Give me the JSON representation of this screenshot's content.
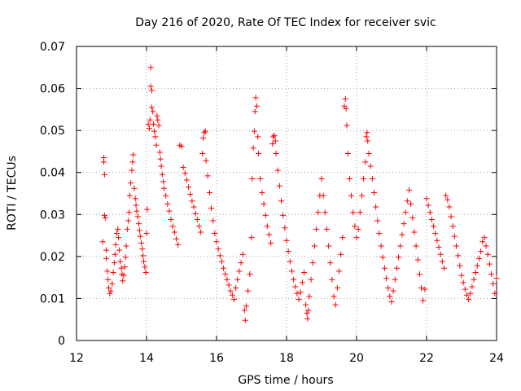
{
  "chart_data": {
    "type": "scatter",
    "title": "Day 216 of 2020, Rate Of TEC Index for receiver svic",
    "xlabel": "GPS time / hours",
    "ylabel": "ROTI / TECUs",
    "xlim": [
      12,
      24
    ],
    "ylim": [
      0,
      0.07
    ],
    "xticks": [
      "12",
      "14",
      "16",
      "18",
      "20",
      "22",
      "24"
    ],
    "yticks": [
      "0",
      "0.01",
      "0.02",
      "0.03",
      "0.04",
      "0.05",
      "0.06",
      "0.07"
    ],
    "grid": true,
    "marker": "plus",
    "color": "#ff0000",
    "series": [
      {
        "points": [
          [
            12.78,
            0.0435
          ],
          [
            12.78,
            0.0425
          ],
          [
            12.8,
            0.0395
          ],
          [
            12.8,
            0.0298
          ],
          [
            12.82,
            0.0292
          ],
          [
            12.75,
            0.0235
          ],
          [
            12.85,
            0.0215
          ],
          [
            12.85,
            0.0195
          ],
          [
            12.88,
            0.0165
          ],
          [
            12.9,
            0.0145
          ],
          [
            12.92,
            0.0125
          ],
          [
            12.95,
            0.0112
          ],
          [
            12.98,
            0.0118
          ],
          [
            13.02,
            0.0135
          ],
          [
            13.05,
            0.0162
          ],
          [
            13.08,
            0.0185
          ],
          [
            13.1,
            0.0205
          ],
          [
            13.12,
            0.0228
          ],
          [
            13.15,
            0.0255
          ],
          [
            13.18,
            0.0265
          ],
          [
            13.2,
            0.0245
          ],
          [
            13.22,
            0.0215
          ],
          [
            13.25,
            0.0188
          ],
          [
            13.28,
            0.0172
          ],
          [
            13.3,
            0.0158
          ],
          [
            13.32,
            0.0142
          ],
          [
            13.35,
            0.0155
          ],
          [
            13.38,
            0.0175
          ],
          [
            13.4,
            0.0198
          ],
          [
            13.42,
            0.0225
          ],
          [
            13.45,
            0.0265
          ],
          [
            13.48,
            0.0285
          ],
          [
            13.5,
            0.0305
          ],
          [
            13.52,
            0.0345
          ],
          [
            13.55,
            0.0375
          ],
          [
            13.58,
            0.0405
          ],
          [
            13.6,
            0.0425
          ],
          [
            13.62,
            0.0442
          ],
          [
            13.65,
            0.0362
          ],
          [
            13.68,
            0.0338
          ],
          [
            13.7,
            0.0322
          ],
          [
            13.72,
            0.0308
          ],
          [
            13.75,
            0.0295
          ],
          [
            13.78,
            0.0278
          ],
          [
            13.8,
            0.0262
          ],
          [
            13.82,
            0.0248
          ],
          [
            13.85,
            0.0232
          ],
          [
            13.88,
            0.0218
          ],
          [
            13.9,
            0.0202
          ],
          [
            13.92,
            0.0188
          ],
          [
            13.95,
            0.0175
          ],
          [
            13.98,
            0.0162
          ],
          [
            14.0,
            0.0255
          ],
          [
            14.02,
            0.0312
          ],
          [
            14.05,
            0.0515
          ],
          [
            14.08,
            0.0505
          ],
          [
            14.1,
            0.0525
          ],
          [
            14.12,
            0.065
          ],
          [
            14.12,
            0.0605
          ],
          [
            14.15,
            0.0595
          ],
          [
            14.15,
            0.0555
          ],
          [
            14.18,
            0.0545
          ],
          [
            14.2,
            0.0515
          ],
          [
            14.22,
            0.0498
          ],
          [
            14.25,
            0.0485
          ],
          [
            14.28,
            0.0465
          ],
          [
            14.3,
            0.0535
          ],
          [
            14.32,
            0.0525
          ],
          [
            14.35,
            0.0512
          ],
          [
            14.38,
            0.0448
          ],
          [
            14.4,
            0.0432
          ],
          [
            14.42,
            0.0415
          ],
          [
            14.45,
            0.0395
          ],
          [
            14.48,
            0.0378
          ],
          [
            14.5,
            0.0362
          ],
          [
            14.55,
            0.0345
          ],
          [
            14.6,
            0.0325
          ],
          [
            14.65,
            0.0308
          ],
          [
            14.7,
            0.0288
          ],
          [
            14.75,
            0.0272
          ],
          [
            14.8,
            0.0258
          ],
          [
            14.85,
            0.0242
          ],
          [
            14.9,
            0.0228
          ],
          [
            14.95,
            0.0465
          ],
          [
            15.0,
            0.0462
          ],
          [
            15.05,
            0.0412
          ],
          [
            15.1,
            0.0398
          ],
          [
            15.15,
            0.0382
          ],
          [
            15.2,
            0.0365
          ],
          [
            15.25,
            0.0348
          ],
          [
            15.3,
            0.0332
          ],
          [
            15.35,
            0.0318
          ],
          [
            15.4,
            0.0302
          ],
          [
            15.45,
            0.0288
          ],
          [
            15.5,
            0.0272
          ],
          [
            15.55,
            0.0258
          ],
          [
            15.6,
            0.0445
          ],
          [
            15.62,
            0.0482
          ],
          [
            15.65,
            0.0495
          ],
          [
            15.68,
            0.0498
          ],
          [
            15.7,
            0.0428
          ],
          [
            15.75,
            0.0392
          ],
          [
            15.8,
            0.0352
          ],
          [
            15.85,
            0.0315
          ],
          [
            15.9,
            0.0285
          ],
          [
            15.95,
            0.0255
          ],
          [
            16.0,
            0.0235
          ],
          [
            16.05,
            0.0218
          ],
          [
            16.1,
            0.0202
          ],
          [
            16.15,
            0.0188
          ],
          [
            16.2,
            0.0172
          ],
          [
            16.25,
            0.0158
          ],
          [
            16.3,
            0.0145
          ],
          [
            16.35,
            0.0132
          ],
          [
            16.4,
            0.0118
          ],
          [
            16.45,
            0.0108
          ],
          [
            16.5,
            0.0098
          ],
          [
            16.55,
            0.0125
          ],
          [
            16.6,
            0.0145
          ],
          [
            16.65,
            0.0165
          ],
          [
            16.7,
            0.0185
          ],
          [
            16.75,
            0.0205
          ],
          [
            16.8,
            0.0072
          ],
          [
            16.82,
            0.0048
          ],
          [
            16.85,
            0.0082
          ],
          [
            16.9,
            0.0118
          ],
          [
            16.95,
            0.0158
          ],
          [
            17.0,
            0.0245
          ],
          [
            17.02,
            0.0385
          ],
          [
            17.05,
            0.0458
          ],
          [
            17.08,
            0.0498
          ],
          [
            17.1,
            0.0545
          ],
          [
            17.12,
            0.0578
          ],
          [
            17.15,
            0.0558
          ],
          [
            17.18,
            0.0485
          ],
          [
            17.2,
            0.0445
          ],
          [
            17.25,
            0.0385
          ],
          [
            17.3,
            0.0352
          ],
          [
            17.35,
            0.0325
          ],
          [
            17.4,
            0.0298
          ],
          [
            17.45,
            0.0272
          ],
          [
            17.5,
            0.0252
          ],
          [
            17.55,
            0.0232
          ],
          [
            17.6,
            0.0468
          ],
          [
            17.62,
            0.0485
          ],
          [
            17.65,
            0.0488
          ],
          [
            17.68,
            0.0475
          ],
          [
            17.7,
            0.0445
          ],
          [
            17.75,
            0.0405
          ],
          [
            17.8,
            0.0368
          ],
          [
            17.85,
            0.0332
          ],
          [
            17.9,
            0.0298
          ],
          [
            17.95,
            0.0268
          ],
          [
            18.0,
            0.0238
          ],
          [
            18.05,
            0.0212
          ],
          [
            18.1,
            0.0188
          ],
          [
            18.15,
            0.0165
          ],
          [
            18.2,
            0.0145
          ],
          [
            18.25,
            0.0128
          ],
          [
            18.3,
            0.0112
          ],
          [
            18.35,
            0.0098
          ],
          [
            18.4,
            0.0115
          ],
          [
            18.45,
            0.0138
          ],
          [
            18.5,
            0.0162
          ],
          [
            18.55,
            0.0085
          ],
          [
            18.58,
            0.0065
          ],
          [
            18.6,
            0.0052
          ],
          [
            18.62,
            0.0072
          ],
          [
            18.65,
            0.0105
          ],
          [
            18.7,
            0.0145
          ],
          [
            18.75,
            0.0185
          ],
          [
            18.8,
            0.0225
          ],
          [
            18.85,
            0.0265
          ],
          [
            18.9,
            0.0305
          ],
          [
            18.95,
            0.0345
          ],
          [
            19.0,
            0.0385
          ],
          [
            19.05,
            0.0345
          ],
          [
            19.1,
            0.0305
          ],
          [
            19.15,
            0.0265
          ],
          [
            19.2,
            0.0225
          ],
          [
            19.25,
            0.0185
          ],
          [
            19.3,
            0.0145
          ],
          [
            19.35,
            0.0105
          ],
          [
            19.4,
            0.0085
          ],
          [
            19.45,
            0.0125
          ],
          [
            19.5,
            0.0165
          ],
          [
            19.55,
            0.0205
          ],
          [
            19.6,
            0.0245
          ],
          [
            19.65,
            0.0558
          ],
          [
            19.68,
            0.0575
          ],
          [
            19.7,
            0.0552
          ],
          [
            19.72,
            0.0512
          ],
          [
            19.75,
            0.0445
          ],
          [
            19.8,
            0.0385
          ],
          [
            19.85,
            0.0345
          ],
          [
            19.9,
            0.0305
          ],
          [
            19.95,
            0.0272
          ],
          [
            20.0,
            0.0245
          ],
          [
            20.05,
            0.0265
          ],
          [
            20.1,
            0.0305
          ],
          [
            20.15,
            0.0345
          ],
          [
            20.2,
            0.0385
          ],
          [
            20.25,
            0.0425
          ],
          [
            20.28,
            0.0485
          ],
          [
            20.3,
            0.0495
          ],
          [
            20.32,
            0.0475
          ],
          [
            20.35,
            0.0445
          ],
          [
            20.4,
            0.0415
          ],
          [
            20.45,
            0.0385
          ],
          [
            20.5,
            0.0352
          ],
          [
            20.55,
            0.0318
          ],
          [
            20.6,
            0.0285
          ],
          [
            20.65,
            0.0255
          ],
          [
            20.7,
            0.0225
          ],
          [
            20.75,
            0.0198
          ],
          [
            20.8,
            0.0172
          ],
          [
            20.85,
            0.0148
          ],
          [
            20.9,
            0.0125
          ],
          [
            20.95,
            0.0105
          ],
          [
            21.0,
            0.0092
          ],
          [
            21.05,
            0.0118
          ],
          [
            21.1,
            0.0145
          ],
          [
            21.15,
            0.0172
          ],
          [
            21.2,
            0.0198
          ],
          [
            21.25,
            0.0225
          ],
          [
            21.3,
            0.0252
          ],
          [
            21.35,
            0.0278
          ],
          [
            21.4,
            0.0305
          ],
          [
            21.45,
            0.0332
          ],
          [
            21.5,
            0.0358
          ],
          [
            21.55,
            0.0325
          ],
          [
            21.6,
            0.0292
          ],
          [
            21.65,
            0.0258
          ],
          [
            21.7,
            0.0225
          ],
          [
            21.75,
            0.0192
          ],
          [
            21.8,
            0.0158
          ],
          [
            21.85,
            0.0125
          ],
          [
            21.9,
            0.0095
          ],
          [
            21.95,
            0.0122
          ],
          [
            22.0,
            0.0338
          ],
          [
            22.05,
            0.0322
          ],
          [
            22.1,
            0.0305
          ],
          [
            22.15,
            0.0288
          ],
          [
            22.2,
            0.0272
          ],
          [
            22.25,
            0.0255
          ],
          [
            22.3,
            0.0238
          ],
          [
            22.35,
            0.0222
          ],
          [
            22.4,
            0.0205
          ],
          [
            22.45,
            0.0188
          ],
          [
            22.5,
            0.0172
          ],
          [
            22.55,
            0.0345
          ],
          [
            22.6,
            0.0335
          ],
          [
            22.65,
            0.0318
          ],
          [
            22.7,
            0.0295
          ],
          [
            22.75,
            0.0272
          ],
          [
            22.8,
            0.0248
          ],
          [
            22.85,
            0.0225
          ],
          [
            22.9,
            0.0202
          ],
          [
            22.95,
            0.0178
          ],
          [
            23.0,
            0.0155
          ],
          [
            23.05,
            0.0138
          ],
          [
            23.1,
            0.0122
          ],
          [
            23.15,
            0.0108
          ],
          [
            23.2,
            0.0098
          ],
          [
            23.25,
            0.0112
          ],
          [
            23.3,
            0.0128
          ],
          [
            23.35,
            0.0145
          ],
          [
            23.4,
            0.0162
          ],
          [
            23.45,
            0.0178
          ],
          [
            23.5,
            0.0195
          ],
          [
            23.55,
            0.0212
          ],
          [
            23.6,
            0.0235
          ],
          [
            23.65,
            0.0245
          ],
          [
            23.7,
            0.0225
          ],
          [
            23.75,
            0.0205
          ],
          [
            23.8,
            0.0182
          ],
          [
            23.85,
            0.0158
          ],
          [
            23.9,
            0.0135
          ],
          [
            23.95,
            0.0112
          ],
          [
            24.0,
            0.0148
          ]
        ]
      }
    ]
  }
}
